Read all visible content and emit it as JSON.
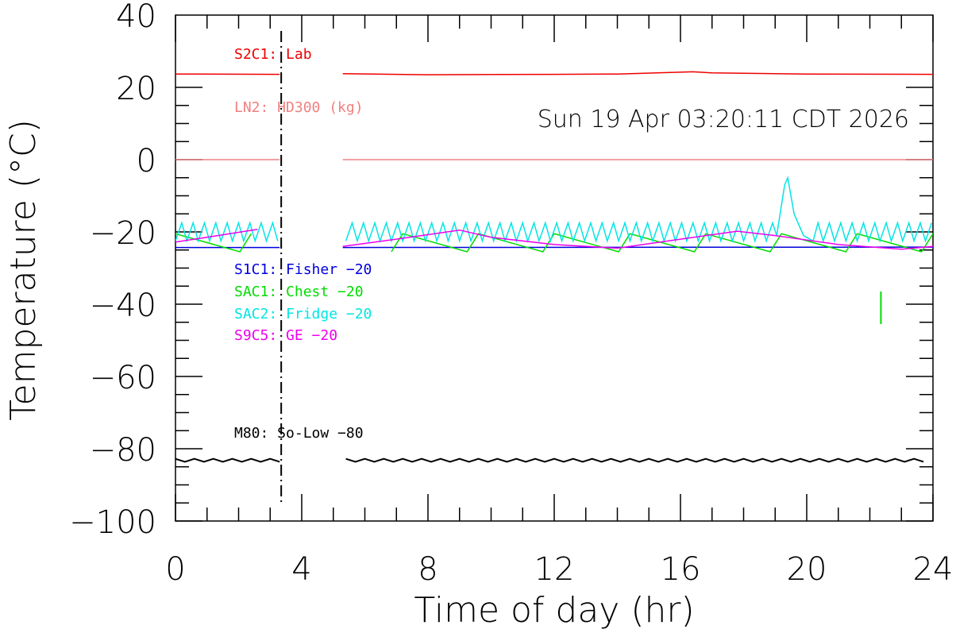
{
  "chart_data": {
    "type": "line",
    "xlabel": "Time of day (hr)",
    "ylabel": "Temperature (°C)",
    "xlim": [
      0,
      24
    ],
    "ylim": [
      -100,
      40
    ],
    "xticks": [
      0,
      4,
      8,
      12,
      16,
      20,
      24
    ],
    "xtick_labels": [
      "0",
      "4",
      "8",
      "12",
      "16",
      "20",
      "24"
    ],
    "yticks": [
      -100,
      -80,
      -60,
      -40,
      -20,
      0,
      20,
      40
    ],
    "ytick_labels": [
      "−100",
      "−80",
      "−60",
      "−40",
      "−20",
      "0",
      "20",
      "40"
    ],
    "timestamp": "Sun 19 Apr 03:20:11 CDT 2026",
    "current_time_hr": 3.35,
    "gap": [
      3.35,
      5.3
    ],
    "series": [
      {
        "name": "S2C1: Lab",
        "color": "#ee0000",
        "x": [
          0,
          3.3,
          5.3,
          8,
          12,
          14,
          16.4,
          17,
          20,
          24
        ],
        "y": [
          23.7,
          23.6,
          23.8,
          23.5,
          23.6,
          23.7,
          24.3,
          24.0,
          23.7,
          23.6
        ]
      },
      {
        "name": "LN2: HD300 (kg)",
        "color": "#f08080",
        "x": [
          0,
          3.3,
          5.3,
          24
        ],
        "y": [
          0,
          0,
          0,
          0
        ]
      },
      {
        "name": "S1C1: Fisher -20",
        "color": "#0000dd",
        "x": [
          0,
          3.3,
          5.3,
          24
        ],
        "y": [
          -24.3,
          -24.3,
          -24.3,
          -24.2
        ]
      },
      {
        "name": "SAC1: Chest -20",
        "color": "#00dd00",
        "pattern": "chest"
      },
      {
        "name": "SAC2: Fridge -20",
        "color": "#00e5e5",
        "pattern": "fridge"
      },
      {
        "name": "S9C5: GE -20",
        "color": "#ee00ee",
        "x": [
          0,
          1,
          2.6,
          5.3,
          7,
          9,
          10,
          12,
          14,
          16,
          17.8,
          19,
          21,
          23,
          24
        ],
        "y": [
          -22.8,
          -21.5,
          -19.3,
          -24.0,
          -22.0,
          -19.5,
          -21.5,
          -23.5,
          -24.5,
          -22.0,
          -19.8,
          -21.0,
          -23.5,
          -24.8,
          -24.0
        ]
      },
      {
        "name": "M80: So-Low -80",
        "color": "#000000",
        "pattern": "lowfreezer"
      }
    ]
  },
  "legend": {
    "s2c1": "S2C1: Lab",
    "ln2": "LN2: HD300 (kg)",
    "s1c1": "S1C1: Fisher −20",
    "sac1": "SAC1: Chest −20",
    "sac2": "SAC2: Fridge −20",
    "s9c5": "S9C5: GE −20",
    "m80": "M80: So-Low −80"
  }
}
